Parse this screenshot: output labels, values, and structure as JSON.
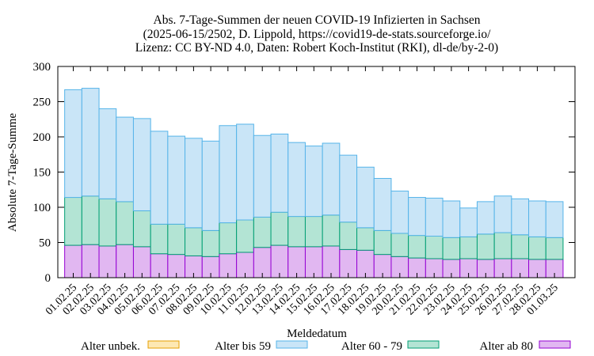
{
  "chart_data": {
    "type": "bar",
    "stacked": true,
    "title": [
      "Abs. 7-Tage-Summen der neuen COVID-19 Infizierten in Sachsen",
      "(2025-06-15/2502, D. Lippold, https://covid19-de-stats.sourceforge.io/",
      "Lizenz: CC BY-ND 4.0, Daten: Robert Koch-Institut (RKI), dl-de/by-2-0)"
    ],
    "xlabel": "Meldedatum",
    "ylabel": "Absolute 7-Tage-Summe",
    "ylim": [
      0,
      300
    ],
    "yticks": [
      0,
      50,
      100,
      150,
      200,
      250,
      300
    ],
    "grid": false,
    "legend_position": "bottom",
    "categories": [
      "01.02.25",
      "02.02.25",
      "03.02.25",
      "04.02.25",
      "05.02.25",
      "06.02.25",
      "07.02.25",
      "08.02.25",
      "09.02.25",
      "10.02.25",
      "11.02.25",
      "12.02.25",
      "13.02.25",
      "14.02.25",
      "15.02.25",
      "16.02.25",
      "17.02.25",
      "18.02.25",
      "19.02.25",
      "20.02.25",
      "21.02.25",
      "22.02.25",
      "23.02.25",
      "24.02.25",
      "25.02.25",
      "26.02.25",
      "27.02.25",
      "28.02.25",
      "01.03.25"
    ],
    "series": [
      {
        "name": "Alter ab 80",
        "fill": "#e1b7f1",
        "stroke": "#9400d3",
        "values": [
          46,
          47,
          45,
          47,
          44,
          34,
          33,
          31,
          30,
          34,
          36,
          43,
          46,
          44,
          44,
          45,
          40,
          39,
          33,
          30,
          28,
          27,
          26,
          27,
          26,
          27,
          27,
          26,
          26
        ]
      },
      {
        "name": "Alter 60 - 79",
        "fill": "#b3e4d4",
        "stroke": "#009e73",
        "values": [
          68,
          69,
          67,
          61,
          51,
          42,
          43,
          40,
          37,
          44,
          46,
          43,
          47,
          43,
          43,
          44,
          39,
          32,
          34,
          33,
          32,
          32,
          31,
          31,
          36,
          37,
          34,
          32,
          31
        ]
      },
      {
        "name": "Alter bis 59",
        "fill": "#c9e5f7",
        "stroke": "#56b4e9",
        "values": [
          153,
          153,
          128,
          120,
          131,
          132,
          125,
          127,
          127,
          138,
          136,
          116,
          111,
          105,
          100,
          102,
          95,
          86,
          74,
          60,
          54,
          54,
          52,
          41,
          46,
          52,
          51,
          51,
          51
        ]
      },
      {
        "name": "Alter unbek.",
        "fill": "#fde8b3",
        "stroke": "#e69f00",
        "values": [
          0,
          0,
          0,
          0,
          0,
          0,
          0,
          0,
          0,
          0,
          0,
          0,
          0,
          0,
          0,
          0,
          0,
          0,
          0,
          0,
          0,
          0,
          0,
          0,
          0,
          0,
          0,
          0,
          0
        ]
      }
    ],
    "legend_order": [
      "Alter unbek.",
      "Alter bis 59",
      "Alter 60 - 79",
      "Alter ab 80"
    ]
  }
}
